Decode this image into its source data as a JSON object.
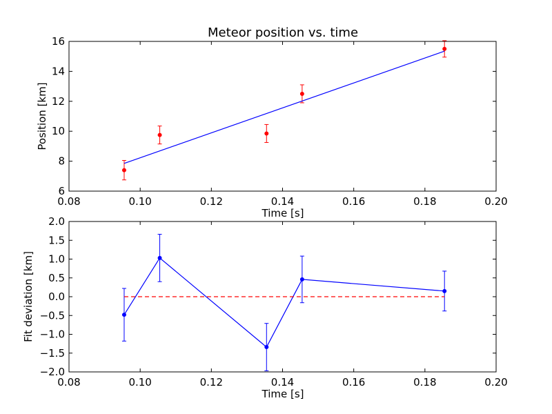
{
  "chart_data": [
    {
      "type": "scatter",
      "title": "Meteor position vs. time",
      "xlabel": "Time [s]",
      "ylabel": "Position [km]",
      "xlim": [
        0.08,
        0.2
      ],
      "ylim": [
        6,
        16
      ],
      "xticks": [
        "0.08",
        "0.10",
        "0.12",
        "0.14",
        "0.16",
        "0.18",
        "0.20"
      ],
      "yticks": [
        "6",
        "8",
        "10",
        "12",
        "14",
        "16"
      ],
      "grid": false,
      "series": [
        {
          "kind": "errorbar",
          "color": "#ff0000",
          "x": [
            0.0955,
            0.1055,
            0.1355,
            0.1455,
            0.1855
          ],
          "y": [
            7.4,
            9.75,
            9.85,
            12.5,
            15.5
          ],
          "yerr": [
            0.65,
            0.6,
            0.6,
            0.6,
            0.55
          ]
        },
        {
          "kind": "line",
          "color": "#0000ff",
          "x": [
            0.0955,
            0.1855
          ],
          "y": [
            7.85,
            15.35
          ]
        }
      ]
    },
    {
      "type": "line",
      "title": "",
      "xlabel": "Time [s]",
      "ylabel": "Fit deviation [km]",
      "xlim": [
        0.08,
        0.2
      ],
      "ylim": [
        -2.0,
        2.0
      ],
      "xticks": [
        "0.08",
        "0.10",
        "0.12",
        "0.14",
        "0.16",
        "0.18",
        "0.20"
      ],
      "yticks": [
        "−2.0",
        "−1.5",
        "−1.0",
        "−0.5",
        "0.0",
        "0.5",
        "1.0",
        "1.5",
        "2.0"
      ],
      "grid": false,
      "series": [
        {
          "kind": "errorbar-line",
          "color": "#0000ff",
          "x": [
            0.0955,
            0.1055,
            0.1355,
            0.1455,
            0.1855
          ],
          "y": [
            -0.48,
            1.03,
            -1.34,
            0.46,
            0.15
          ],
          "yerr": [
            0.7,
            0.63,
            0.63,
            0.62,
            0.53
          ]
        },
        {
          "kind": "dashed-line",
          "color": "#ff0000",
          "x": [
            0.0955,
            0.1855
          ],
          "y": [
            0.0,
            0.0
          ]
        }
      ]
    }
  ]
}
